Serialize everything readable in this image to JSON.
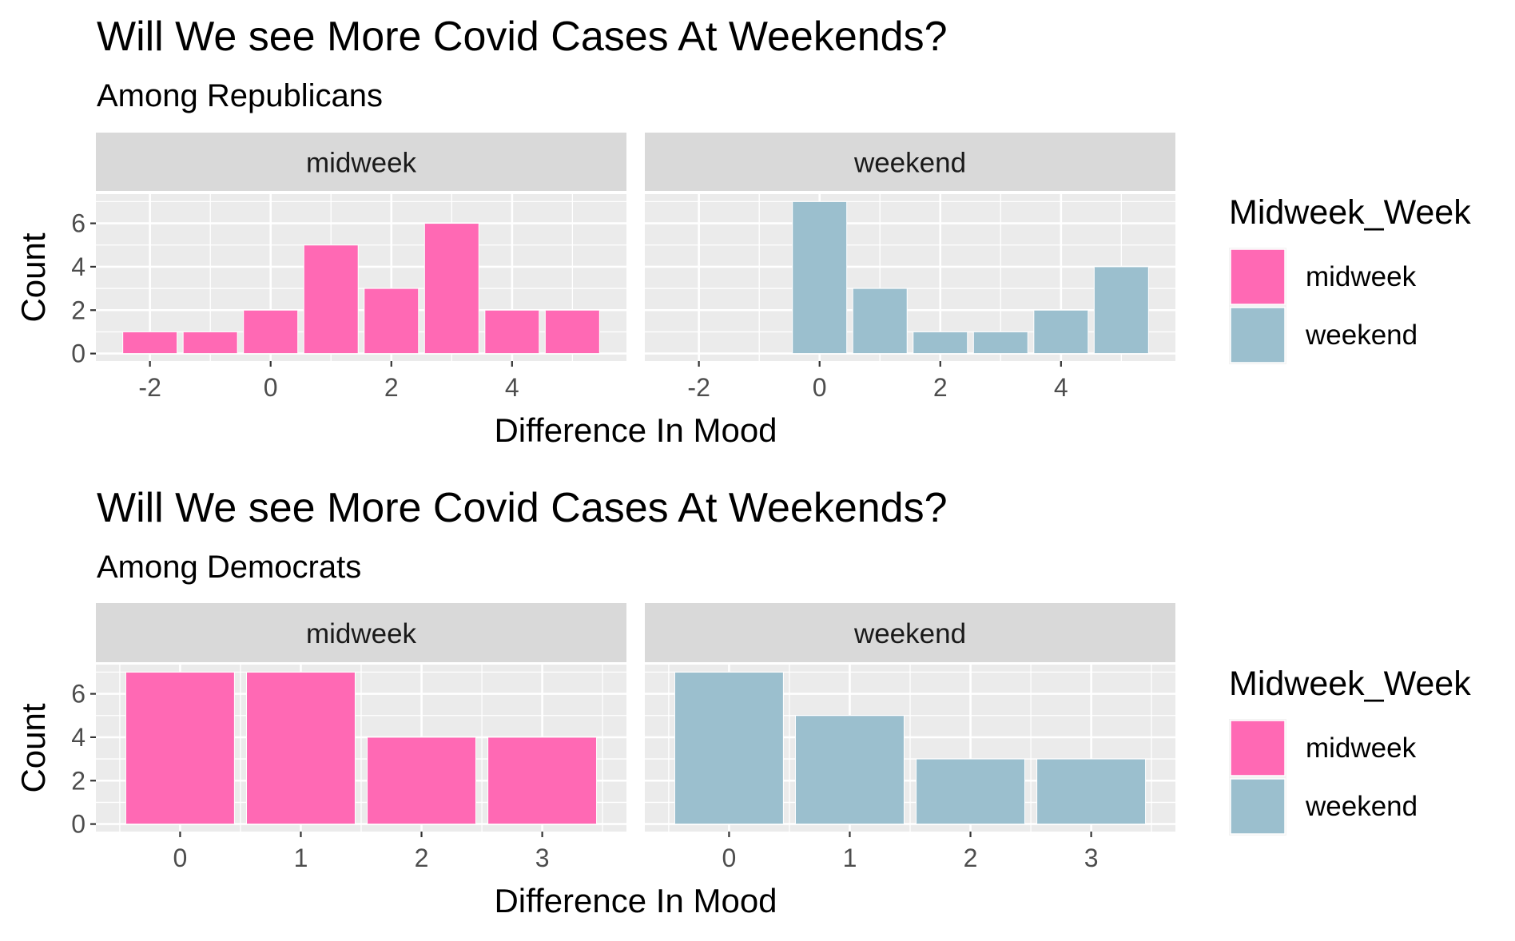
{
  "chart_data": [
    {
      "type": "bar",
      "title": "Will We see More Covid Cases At Weekends?",
      "subtitle": "Among Republicans",
      "xlabel": "Difference In Mood",
      "ylabel": "Count",
      "legend": {
        "title": "Midweek_Week",
        "position": "right",
        "entries": [
          {
            "label": "midweek",
            "color": "#FF69B4"
          },
          {
            "label": "weekend",
            "color": "#9BBFCE"
          }
        ]
      },
      "grid": true,
      "xlim": [
        -2.5,
        5.5
      ],
      "ylim": [
        0,
        7
      ],
      "xticks": [
        -2,
        0,
        2,
        4
      ],
      "yticks": [
        0,
        2,
        4,
        6
      ],
      "panels": [
        {
          "strip": "midweek",
          "color": "#FF69B4",
          "x": [
            -2,
            -1,
            0,
            1,
            2,
            3,
            4,
            5
          ],
          "values": [
            1,
            1,
            2,
            5,
            3,
            6,
            2,
            2
          ]
        },
        {
          "strip": "weekend",
          "color": "#9BBFCE",
          "x": [
            0,
            1,
            2,
            3,
            4,
            5
          ],
          "values": [
            7,
            3,
            1,
            1,
            2,
            4
          ]
        }
      ]
    },
    {
      "type": "bar",
      "title": "Will We see More Covid Cases At Weekends?",
      "subtitle": "Among Democrats",
      "xlabel": "Difference In Mood",
      "ylabel": "Count",
      "legend": {
        "title": "Midweek_Week",
        "position": "right",
        "entries": [
          {
            "label": "midweek",
            "color": "#FF69B4"
          },
          {
            "label": "weekend",
            "color": "#9BBFCE"
          }
        ]
      },
      "grid": true,
      "xlim": [
        -0.5,
        3.5
      ],
      "ylim": [
        0,
        7
      ],
      "xticks": [
        0,
        1,
        2,
        3
      ],
      "yticks": [
        0,
        2,
        4,
        6
      ],
      "panels": [
        {
          "strip": "midweek",
          "color": "#FF69B4",
          "x": [
            0,
            1,
            2,
            3
          ],
          "values": [
            7,
            7,
            4,
            4
          ]
        },
        {
          "strip": "weekend",
          "color": "#9BBFCE",
          "x": [
            0,
            1,
            2,
            3
          ],
          "values": [
            7,
            5,
            3,
            3
          ]
        }
      ]
    }
  ]
}
